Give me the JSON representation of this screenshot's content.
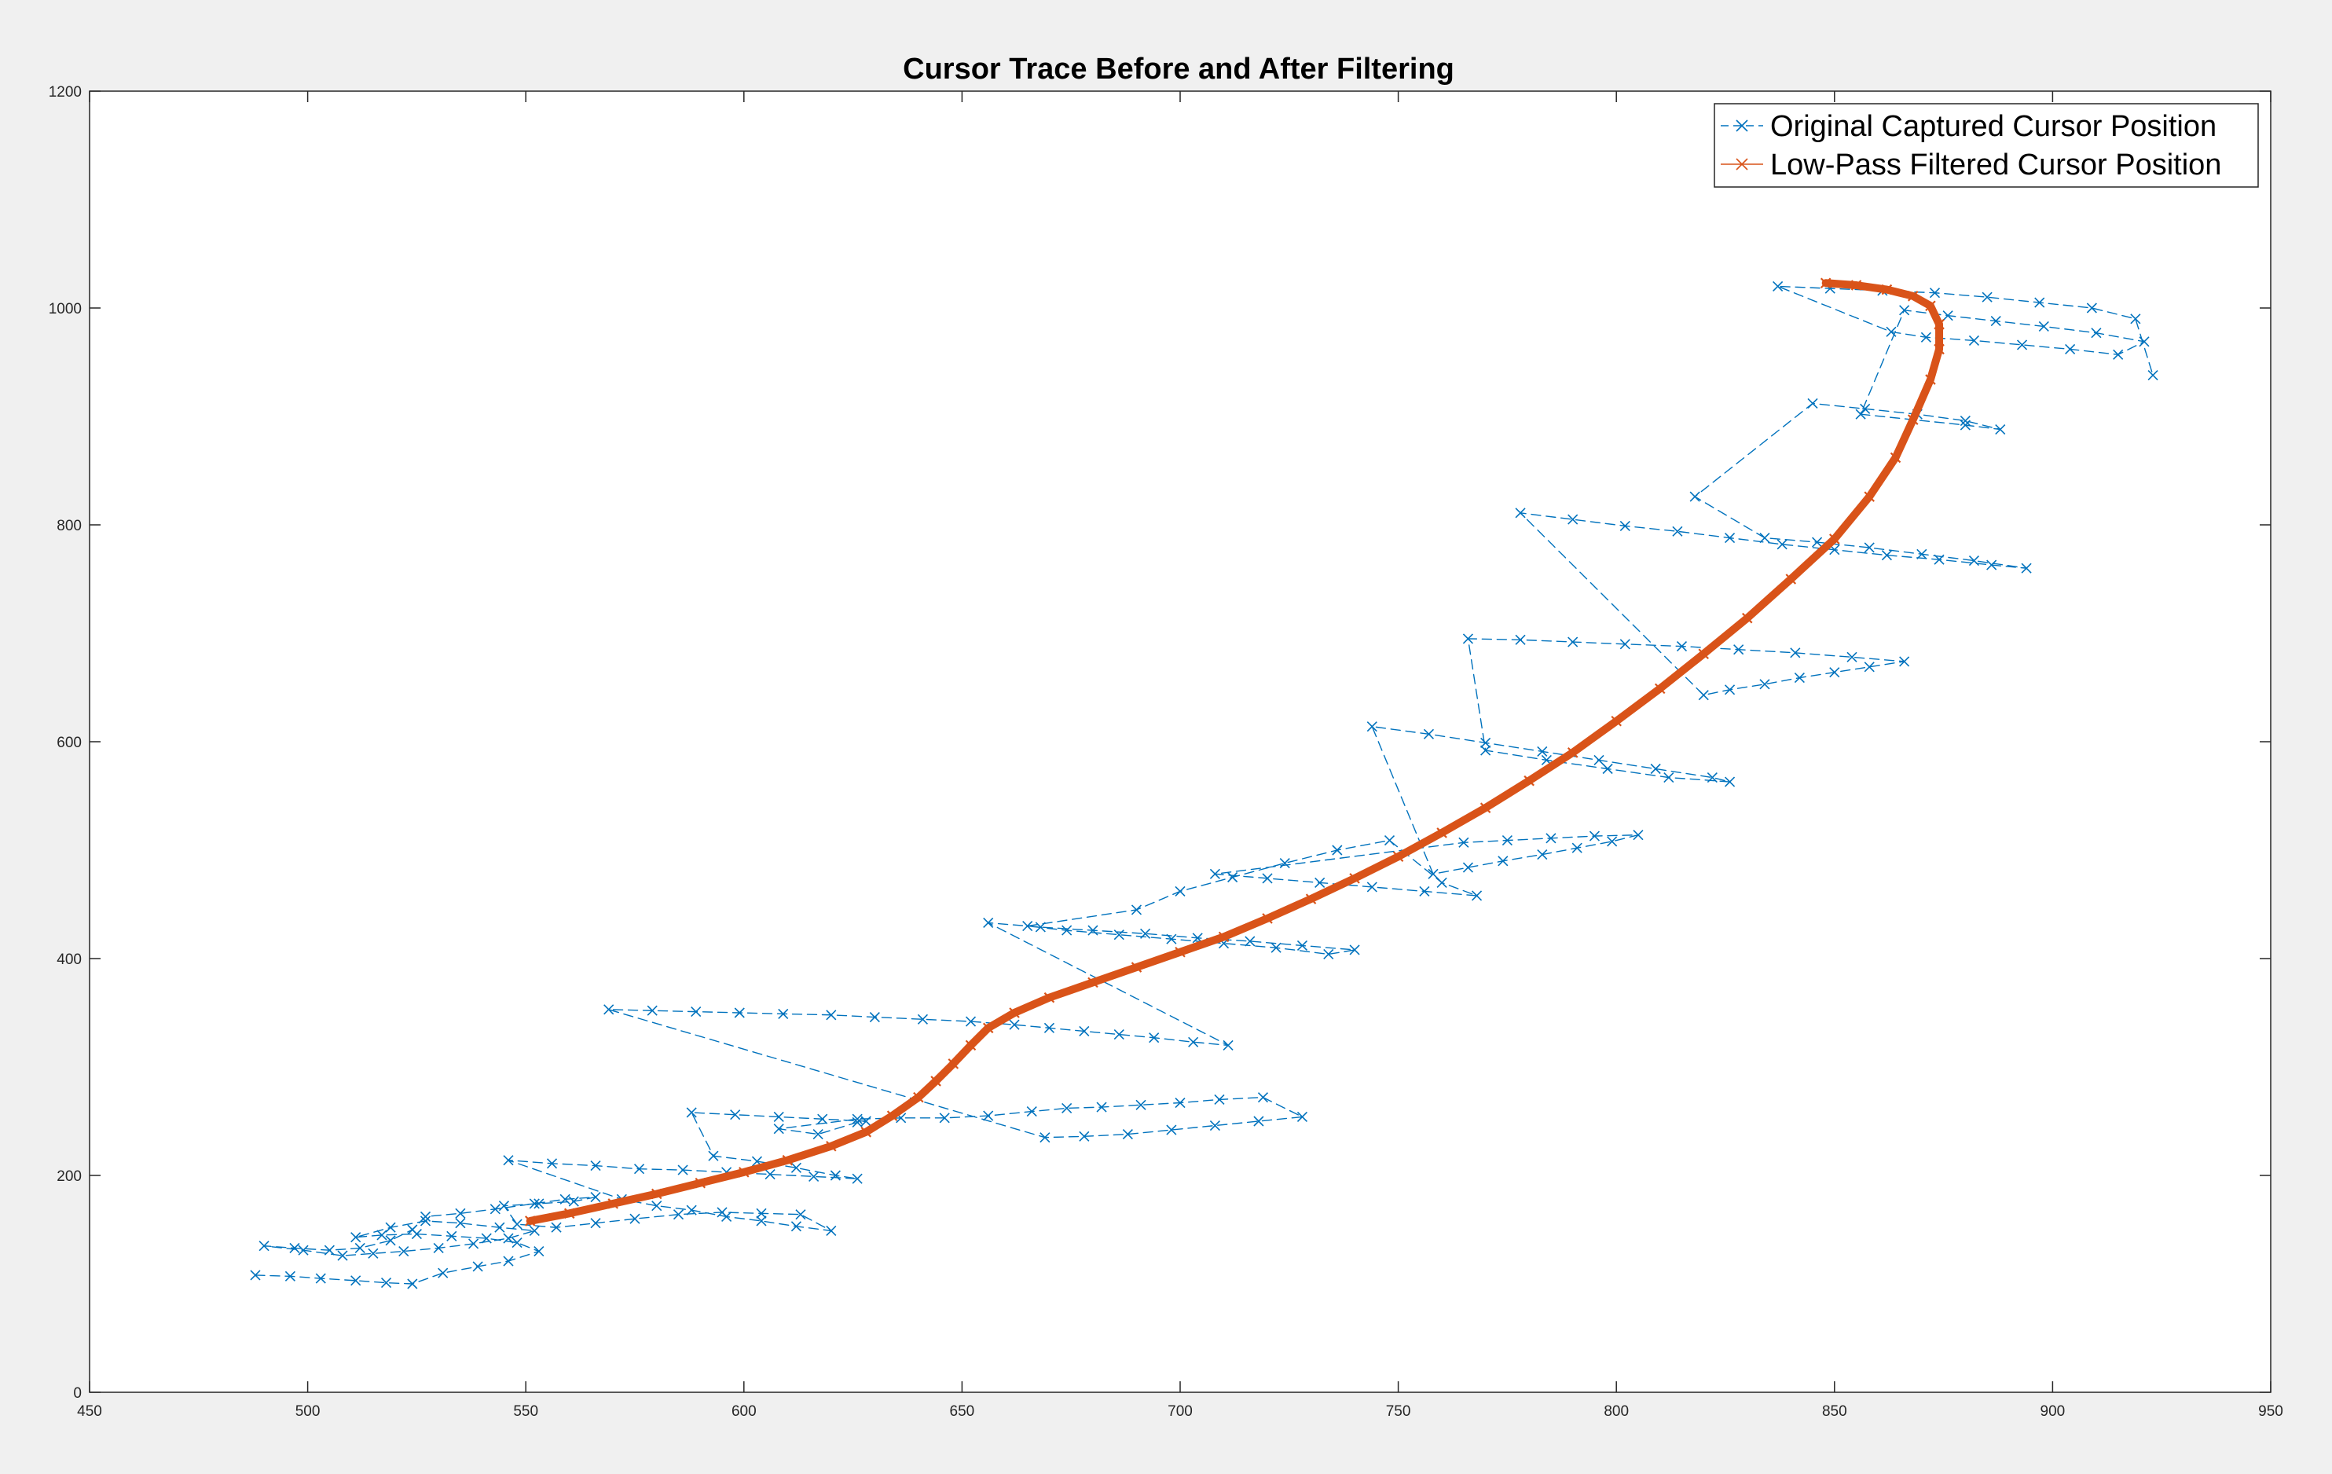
{
  "chart_data": {
    "type": "line",
    "title": "Cursor Trace Before and After Filtering",
    "xlabel": "",
    "ylabel": "",
    "xlim": [
      450,
      950
    ],
    "ylim": [
      0,
      1200
    ],
    "xticks": [
      450,
      500,
      550,
      600,
      650,
      700,
      750,
      800,
      850,
      900,
      950
    ],
    "yticks": [
      0,
      200,
      400,
      600,
      800,
      1000,
      1200
    ],
    "grid": false,
    "legend_position": "top-right",
    "colors": {
      "original": "#0072BD",
      "filtered": "#D95319"
    },
    "series": [
      {
        "name": "Original Captured Cursor Position",
        "style": "dashed-line x-markers",
        "x": [
          488,
          496,
          503,
          511,
          518,
          524,
          531,
          539,
          546,
          553,
          548,
          541,
          533,
          525,
          517,
          511,
          519,
          527,
          535,
          544,
          552,
          546,
          538,
          530,
          522,
          515,
          508,
          499,
          490,
          497,
          505,
          512,
          519,
          524,
          527,
          535,
          543,
          552,
          559,
          566,
          561,
          553,
          545,
          548,
          557,
          566,
          575,
          585,
          595,
          604,
          613,
          620,
          612,
          604,
          596,
          588,
          580,
          572,
          546,
          556,
          566,
          576,
          586,
          596,
          606,
          616,
          626,
          621,
          612,
          603,
          593,
          588,
          598,
          608,
          618,
          628,
          626,
          617,
          608,
          626,
          636,
          646,
          656,
          666,
          674,
          682,
          691,
          700,
          709,
          719,
          728,
          718,
          708,
          698,
          688,
          678,
          669,
          569,
          579,
          589,
          599,
          609,
          620,
          630,
          641,
          652,
          662,
          670,
          678,
          686,
          694,
          703,
          711,
          656,
          668,
          680,
          692,
          704,
          716,
          728,
          740,
          734,
          722,
          710,
          698,
          686,
          674,
          665,
          690,
          700,
          712,
          724,
          736,
          748,
          760,
          768,
          756,
          744,
          732,
          720,
          708,
          765,
          775,
          785,
          795,
          805,
          799,
          791,
          783,
          774,
          766,
          758,
          744,
          757,
          770,
          783,
          796,
          809,
          822,
          826,
          812,
          798,
          784,
          770,
          766,
          778,
          790,
          802,
          815,
          828,
          841,
          854,
          866,
          858,
          850,
          842,
          834,
          826,
          820,
          778,
          790,
          802,
          814,
          826,
          838,
          850,
          862,
          874,
          886,
          894,
          882,
          870,
          858,
          846,
          834,
          818,
          845,
          857,
          869,
          880,
          888,
          880,
          868,
          856,
          866,
          876,
          887,
          898,
          910,
          921,
          915,
          904,
          893,
          882,
          871,
          863,
          837,
          849,
          861,
          873,
          885,
          897,
          909,
          919,
          923
        ],
        "y": [
          108,
          107,
          105,
          103,
          101,
          100,
          110,
          116,
          121,
          130,
          138,
          142,
          144,
          146,
          145,
          143,
          152,
          158,
          156,
          152,
          149,
          142,
          137,
          133,
          130,
          128,
          126,
          131,
          135,
          133,
          131,
          133,
          140,
          150,
          162,
          165,
          169,
          174,
          178,
          180,
          176,
          174,
          172,
          155,
          152,
          156,
          160,
          164,
          166,
          165,
          164,
          149,
          153,
          158,
          162,
          168,
          172,
          178,
          214,
          211,
          209,
          206,
          205,
          203,
          201,
          199,
          197,
          200,
          207,
          213,
          218,
          258,
          256,
          254,
          252,
          250,
          249,
          238,
          243,
          252,
          253,
          253,
          255,
          259,
          262,
          263,
          265,
          267,
          270,
          272,
          254,
          250,
          246,
          242,
          238,
          236,
          235,
          353,
          352,
          351,
          350,
          349,
          348,
          346,
          344,
          342,
          339,
          336,
          333,
          330,
          327,
          323,
          320,
          433,
          429,
          426,
          423,
          419,
          416,
          412,
          408,
          404,
          410,
          414,
          418,
          422,
          426,
          430,
          445,
          462,
          475,
          488,
          500,
          509,
          470,
          458,
          462,
          466,
          470,
          474,
          478,
          507,
          509,
          511,
          513,
          514,
          508,
          502,
          496,
          490,
          484,
          478,
          614,
          607,
          599,
          591,
          583,
          575,
          567,
          563,
          567,
          575,
          583,
          592,
          695,
          694,
          692,
          690,
          688,
          685,
          682,
          678,
          674,
          669,
          664,
          659,
          653,
          648,
          643,
          811,
          805,
          799,
          794,
          788,
          782,
          777,
          772,
          768,
          763,
          760,
          767,
          773,
          779,
          784,
          788,
          826,
          912,
          907,
          902,
          896,
          888,
          892,
          897,
          902,
          998,
          993,
          988,
          983,
          977,
          969,
          957,
          962,
          966,
          970,
          973,
          978,
          1020,
          1018,
          1016,
          1014,
          1010,
          1005,
          1000,
          990,
          938
        ]
      },
      {
        "name": "Low-Pass Filtered Cursor Position",
        "style": "solid-line x-markers",
        "x": [
          551,
          560,
          570,
          580,
          590,
          600,
          610,
          620,
          628,
          634,
          640,
          644,
          648,
          652,
          656,
          662,
          670,
          680,
          690,
          700,
          710,
          720,
          730,
          740,
          750,
          760,
          770,
          780,
          790,
          800,
          810,
          820,
          830,
          840,
          850,
          858,
          864,
          868,
          872,
          874,
          874,
          872,
          868,
          862,
          855,
          848
        ],
        "y": [
          158,
          165,
          174,
          183,
          193,
          203,
          214,
          227,
          240,
          255,
          272,
          287,
          303,
          320,
          336,
          350,
          364,
          378,
          392,
          406,
          420,
          437,
          455,
          474,
          494,
          516,
          539,
          564,
          590,
          619,
          649,
          681,
          714,
          750,
          787,
          826,
          862,
          897,
          934,
          962,
          985,
          1002,
          1011,
          1017,
          1021,
          1023
        ]
      }
    ]
  }
}
